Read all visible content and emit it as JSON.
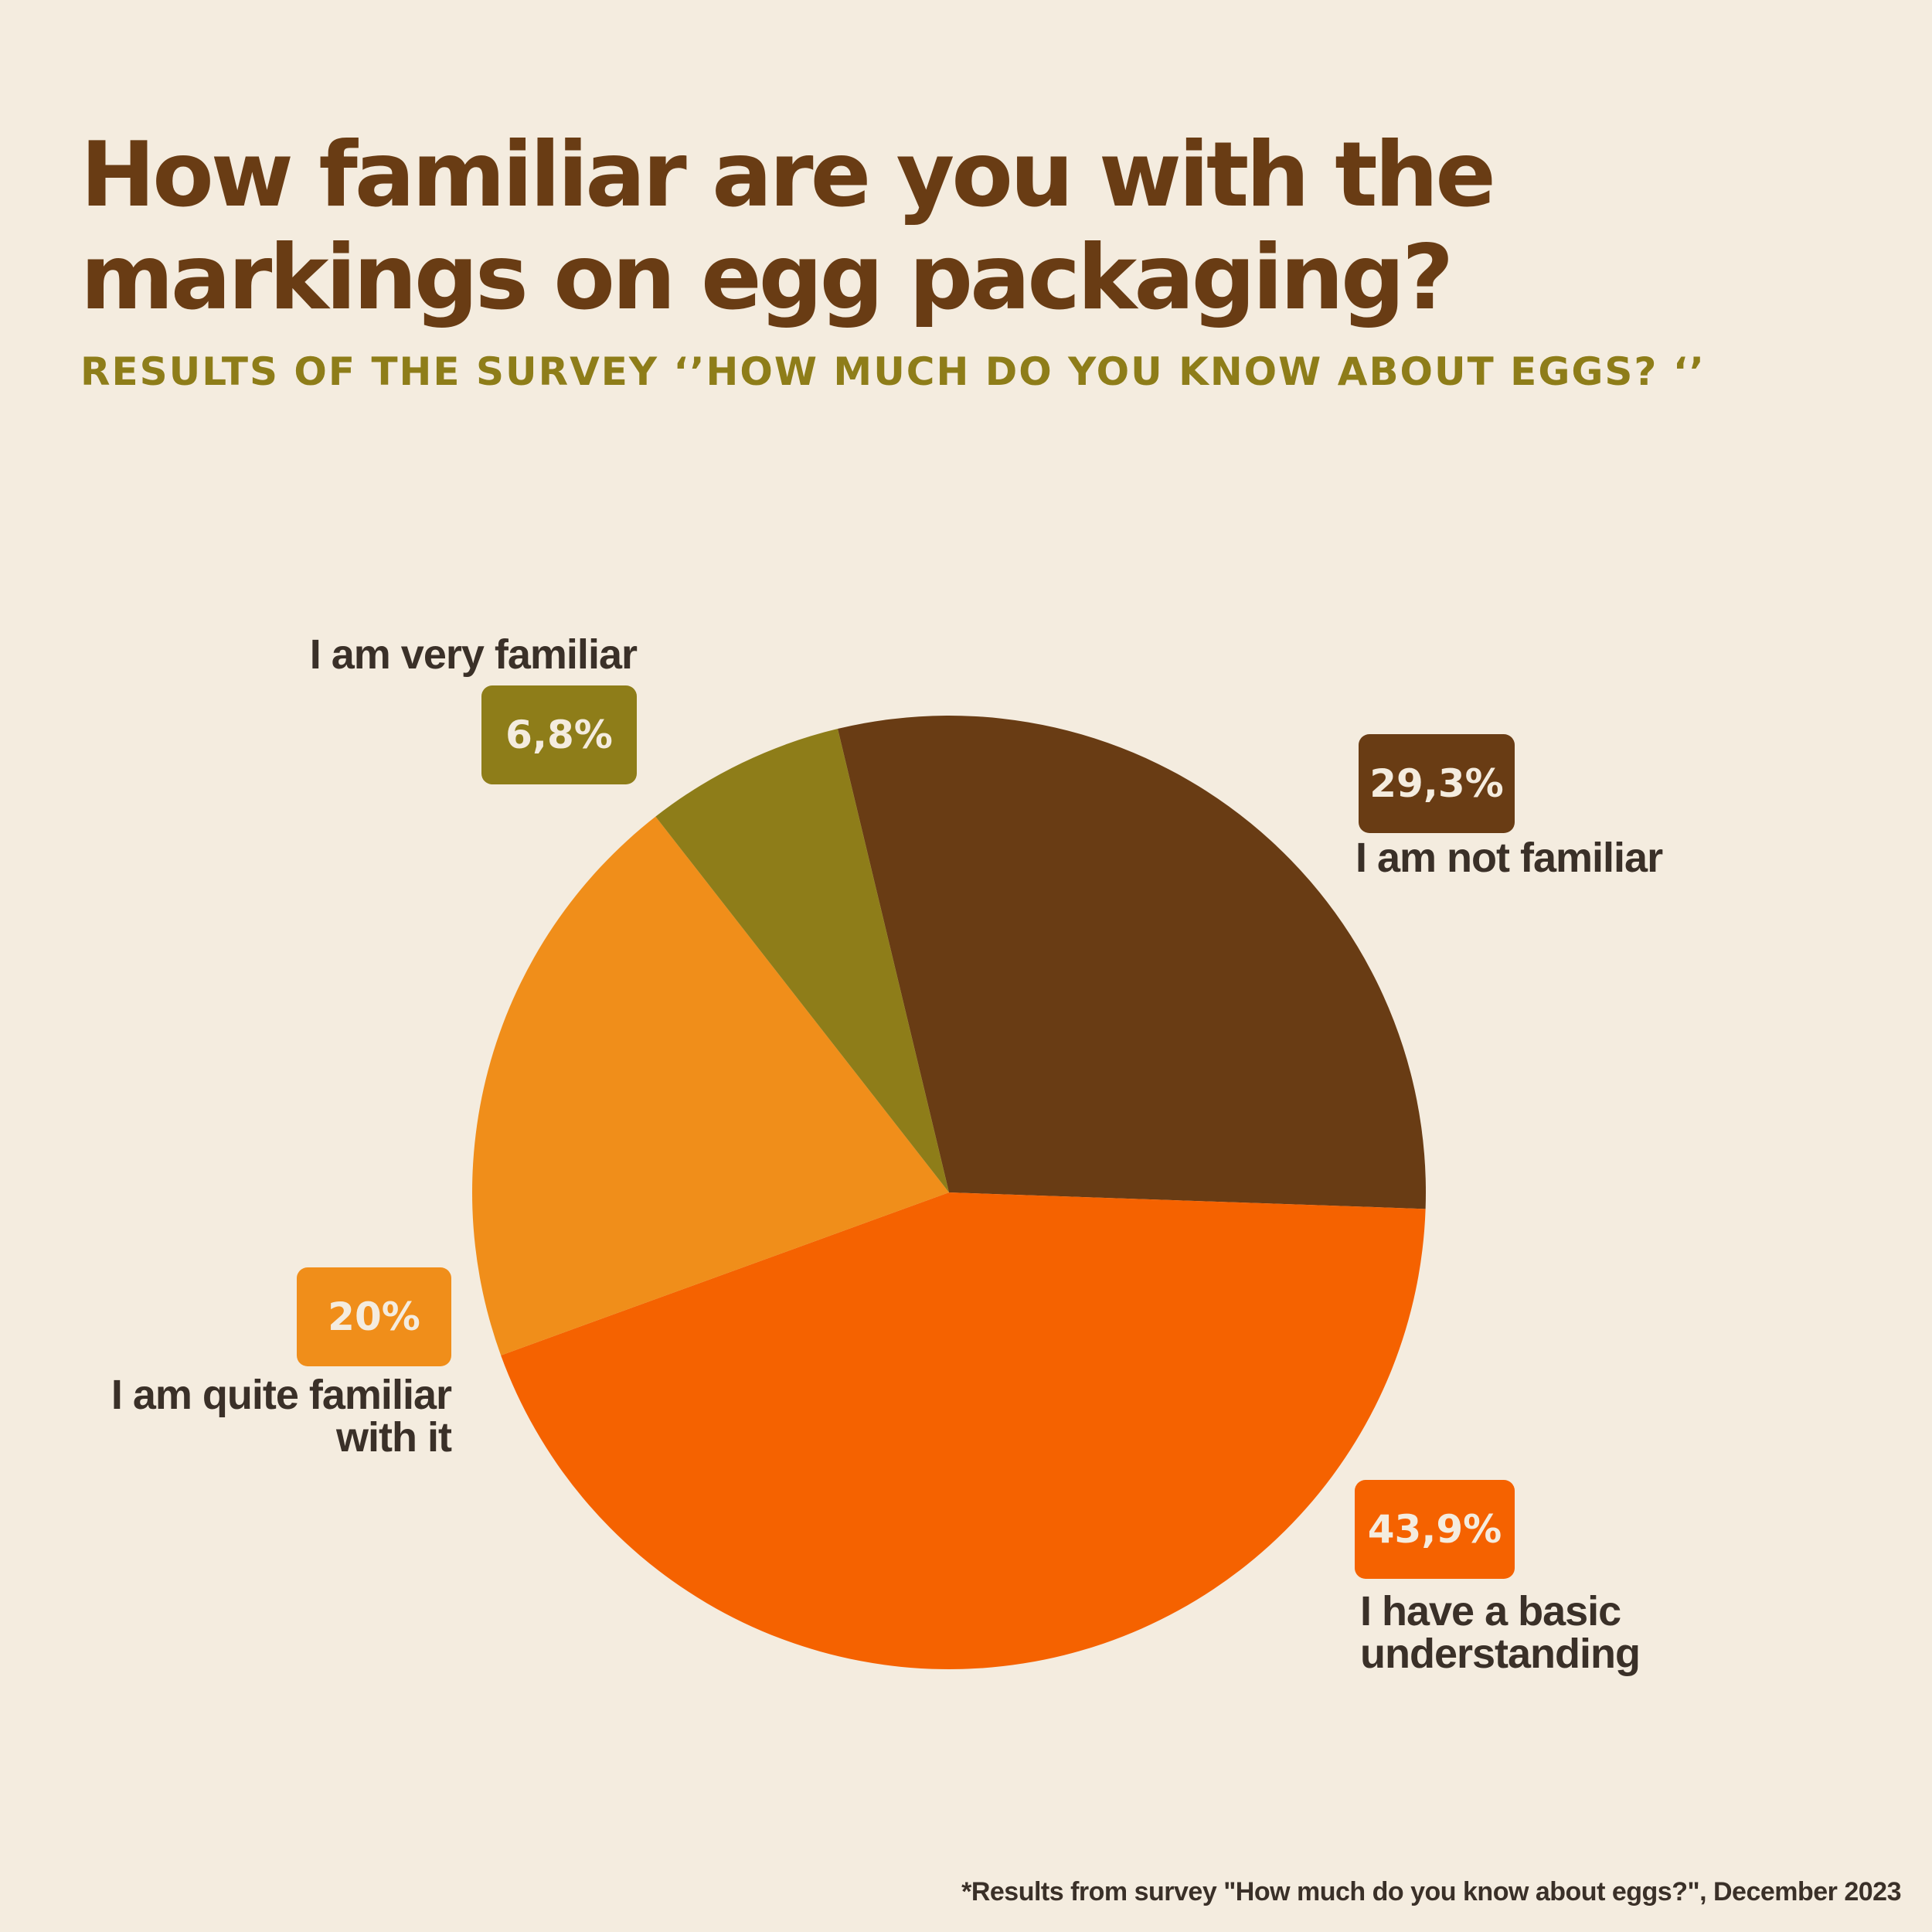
{
  "title": "How familiar are you with the markings on egg packaging?",
  "subtitle": "RESULTS OF THE SURVEY ‘’HOW MUCH DO YOU KNOW ABOUT EGGS? ‘’",
  "footnote": "*Results from survey  \"How much do you know about eggs?\", December 2023",
  "chart_data": {
    "type": "pie",
    "slices": [
      {
        "label": "I am not familiar",
        "value": 29.3,
        "value_label": "29,3%",
        "color": "#693c14"
      },
      {
        "label": "I have a basic understanding",
        "value": 43.9,
        "value_label": "43,9%",
        "color": "#f56200"
      },
      {
        "label": "I am quite familiar with it",
        "value": 20,
        "value_label": "20%",
        "color": "#f08e1a"
      },
      {
        "label": "I am very familiar",
        "value": 6.8,
        "value_label": "6,8%",
        "color": "#8e7d19"
      }
    ]
  }
}
